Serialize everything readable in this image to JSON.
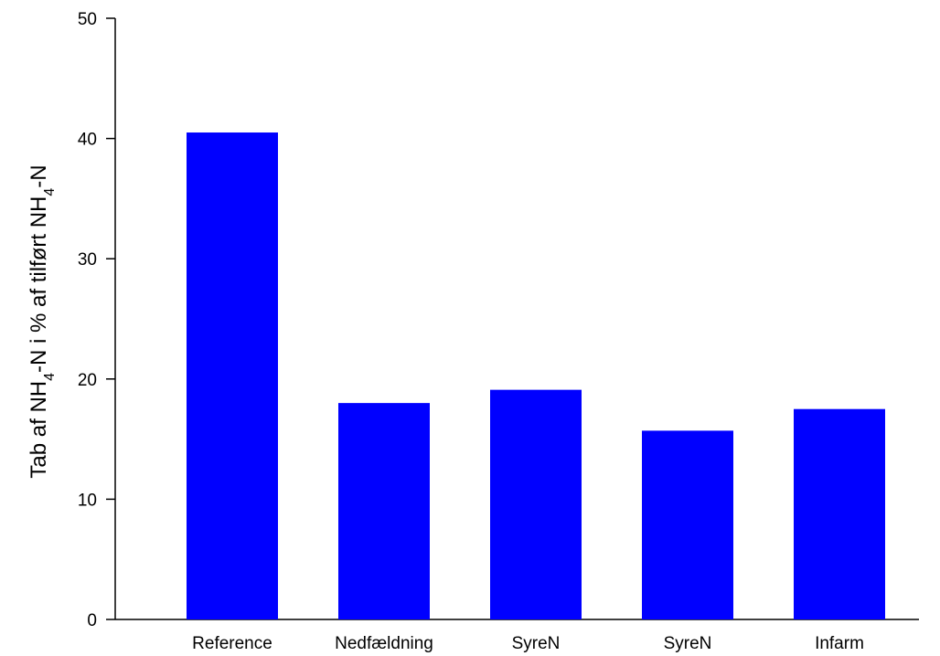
{
  "chart_data": {
    "type": "bar",
    "title": "",
    "xlabel": "",
    "ylabel": {
      "parts": [
        "Tab af NH",
        "4",
        "-N i % af tilført NH",
        "4",
        "-N"
      ]
    },
    "categories": [
      "Reference",
      "Nedfældning",
      "SyreN",
      "SyreN",
      "Infarm"
    ],
    "values": [
      40.5,
      18.0,
      19.1,
      15.7,
      17.5
    ],
    "ylim": [
      0,
      50
    ],
    "yticks": [
      0,
      10,
      20,
      30,
      40,
      50
    ],
    "bar_color": "#0000ff",
    "grid": false,
    "legend": "none"
  }
}
